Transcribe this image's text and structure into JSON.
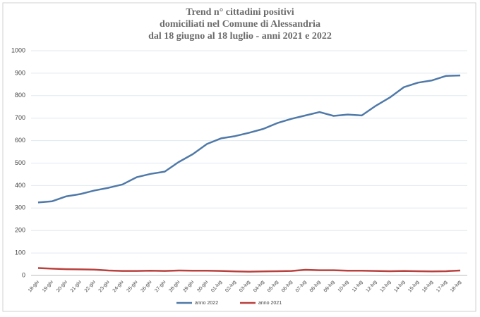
{
  "chart_data": {
    "type": "line",
    "title": [
      "Trend n° cittadini positivi",
      "domiciliati nel Comune di Alessandria",
      "dal 18 giugno al 18 luglio - anni 2021 e 2022"
    ],
    "categories": [
      "18-giu",
      "19-giu",
      "20-giu",
      "21-giu",
      "22-giu",
      "23-giu",
      "24-giu",
      "25-giu",
      "26-giu",
      "27-giu",
      "28-giu",
      "29-giu",
      "30-giu",
      "01-lug",
      "02-lug",
      "03-lug",
      "04-lug",
      "05-lug",
      "06-lug",
      "07-lug",
      "08-lug",
      "09-lug",
      "10-lug",
      "11-lug",
      "12-lug",
      "13-lug",
      "14-lug",
      "15-lug",
      "16-lug",
      "17-lug",
      "18-lug"
    ],
    "series": [
      {
        "name": "anno 2022",
        "color": "#4f79a8",
        "values": [
          325,
          330,
          352,
          362,
          378,
          390,
          405,
          437,
          452,
          462,
          505,
          540,
          585,
          610,
          620,
          635,
          652,
          678,
          697,
          712,
          727,
          710,
          716,
          712,
          755,
          792,
          838,
          858,
          868,
          888,
          890
        ]
      },
      {
        "name": "anno 2021",
        "color": "#b9403d",
        "values": [
          33,
          30,
          28,
          27,
          26,
          22,
          20,
          20,
          21,
          20,
          22,
          21,
          21,
          20,
          18,
          17,
          18,
          19,
          20,
          25,
          23,
          23,
          21,
          21,
          20,
          19,
          20,
          19,
          18,
          19,
          22
        ]
      }
    ],
    "ylim": [
      0,
      1000
    ],
    "yticks": [
      0,
      100,
      200,
      300,
      400,
      500,
      600,
      700,
      800,
      900,
      1000
    ],
    "grid": true,
    "legend": "bottom"
  }
}
